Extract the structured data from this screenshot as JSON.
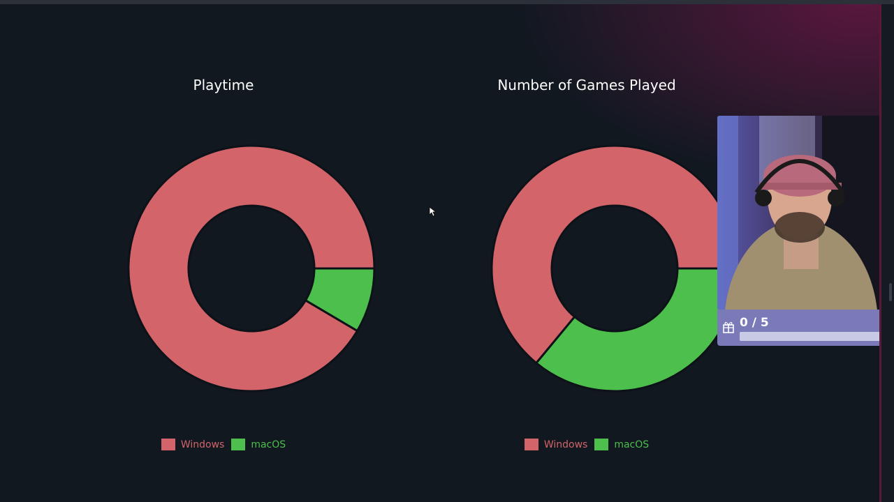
{
  "chart_data": [
    {
      "type": "pie",
      "title": "Playtime",
      "categories": [
        "Windows",
        "macOS"
      ],
      "values": [
        91.5,
        8.5
      ],
      "colors": [
        "#d2646a",
        "#4cbf4c"
      ],
      "style": "donut",
      "legend": "bottom"
    },
    {
      "type": "pie",
      "title": "Number of Games Played",
      "categories": [
        "Windows",
        "macOS"
      ],
      "values": [
        64,
        36
      ],
      "colors": [
        "#d2646a",
        "#4cbf4c"
      ],
      "style": "donut",
      "legend": "bottom"
    }
  ],
  "overlay": {
    "goal_text": "0 / 5",
    "goal_progress": 0,
    "goal_icon": "gift-icon"
  },
  "colors": {
    "background": "#111820",
    "windows": "#d2646a",
    "macos": "#4cbf4c",
    "accent": "#8c1c52"
  }
}
